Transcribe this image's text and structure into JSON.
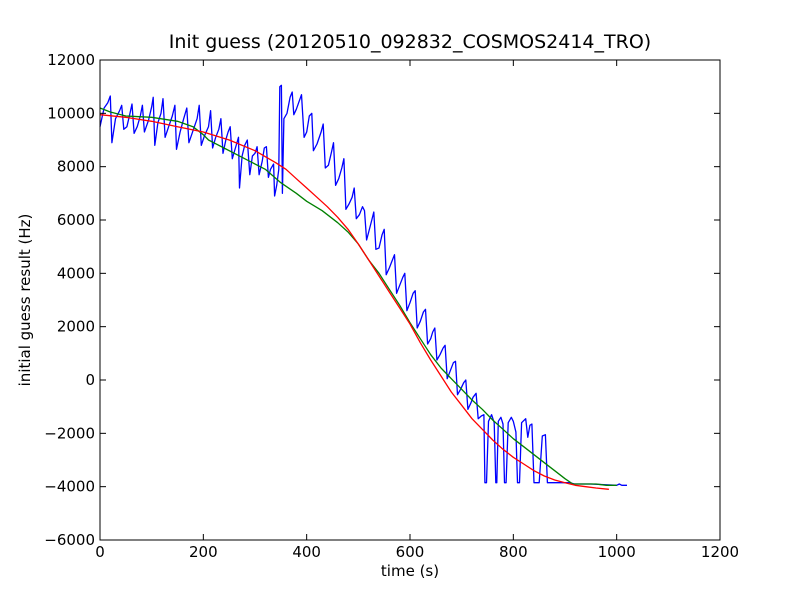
{
  "chart_data": {
    "type": "line",
    "title": "Init guess (20120510_092832_COSMOS2414_TRO)",
    "xlabel": "time (s)",
    "ylabel": "initial guess result (Hz)",
    "xlim": [
      0,
      1200
    ],
    "ylim": [
      -6000,
      12000
    ],
    "x_ticks": [
      0,
      200,
      400,
      600,
      800,
      1000,
      1200
    ],
    "y_ticks": [
      -6000,
      -4000,
      -2000,
      0,
      2000,
      4000,
      6000,
      8000,
      10000,
      12000
    ],
    "x_tick_labels": [
      "0",
      "200",
      "400",
      "600",
      "800",
      "1000",
      "1200"
    ],
    "y_tick_labels": [
      "−6000",
      "−4000",
      "−2000",
      "0",
      "2000",
      "4000",
      "6000",
      "8000",
      "10000",
      "12000"
    ],
    "grid": false,
    "legend": "none",
    "series": [
      {
        "color": "#0000ff",
        "points": [
          [
            0,
            9500
          ],
          [
            8,
            10200
          ],
          [
            15,
            10400
          ],
          [
            20,
            10650
          ],
          [
            23,
            8900
          ],
          [
            30,
            9800
          ],
          [
            38,
            10100
          ],
          [
            42,
            10300
          ],
          [
            46,
            9400
          ],
          [
            52,
            9500
          ],
          [
            58,
            10000
          ],
          [
            62,
            10350
          ],
          [
            66,
            9250
          ],
          [
            72,
            9500
          ],
          [
            78,
            9900
          ],
          [
            82,
            10300
          ],
          [
            86,
            9300
          ],
          [
            94,
            9750
          ],
          [
            100,
            10250
          ],
          [
            103,
            10600
          ],
          [
            106,
            8800
          ],
          [
            112,
            9650
          ],
          [
            118,
            10000
          ],
          [
            122,
            10550
          ],
          [
            126,
            9100
          ],
          [
            132,
            9450
          ],
          [
            140,
            9900
          ],
          [
            145,
            10300
          ],
          [
            148,
            8650
          ],
          [
            155,
            9300
          ],
          [
            162,
            9800
          ],
          [
            168,
            10200
          ],
          [
            172,
            8900
          ],
          [
            180,
            9350
          ],
          [
            188,
            9800
          ],
          [
            192,
            10300
          ],
          [
            196,
            8800
          ],
          [
            202,
            9150
          ],
          [
            210,
            9500
          ],
          [
            214,
            10100
          ],
          [
            218,
            8700
          ],
          [
            224,
            9100
          ],
          [
            230,
            9400
          ],
          [
            234,
            9800
          ],
          [
            238,
            8500
          ],
          [
            244,
            9050
          ],
          [
            248,
            9300
          ],
          [
            252,
            9500
          ],
          [
            256,
            8300
          ],
          [
            262,
            8700
          ],
          [
            268,
            9100
          ],
          [
            270,
            7200
          ],
          [
            275,
            8400
          ],
          [
            280,
            8800
          ],
          [
            285,
            9000
          ],
          [
            290,
            7700
          ],
          [
            295,
            8400
          ],
          [
            300,
            8500
          ],
          [
            304,
            8750
          ],
          [
            308,
            7700
          ],
          [
            314,
            8200
          ],
          [
            318,
            8700
          ],
          [
            322,
            8750
          ],
          [
            326,
            7600
          ],
          [
            330,
            7900
          ],
          [
            336,
            8100
          ],
          [
            338,
            6900
          ],
          [
            342,
            7300
          ],
          [
            346,
            7900
          ],
          [
            348,
            11000
          ],
          [
            351,
            11050
          ],
          [
            353,
            7000
          ],
          [
            356,
            9800
          ],
          [
            362,
            10000
          ],
          [
            368,
            10600
          ],
          [
            372,
            10800
          ],
          [
            375,
            9950
          ],
          [
            380,
            10150
          ],
          [
            390,
            10700
          ],
          [
            395,
            9100
          ],
          [
            400,
            9300
          ],
          [
            405,
            9900
          ],
          [
            410,
            10000
          ],
          [
            413,
            8600
          ],
          [
            420,
            8850
          ],
          [
            428,
            9300
          ],
          [
            432,
            9600
          ],
          [
            436,
            7950
          ],
          [
            442,
            8050
          ],
          [
            448,
            8550
          ],
          [
            452,
            8900
          ],
          [
            456,
            7300
          ],
          [
            462,
            7550
          ],
          [
            468,
            7950
          ],
          [
            472,
            8300
          ],
          [
            476,
            6400
          ],
          [
            482,
            6600
          ],
          [
            488,
            6850
          ],
          [
            492,
            7200
          ],
          [
            496,
            6050
          ],
          [
            502,
            6200
          ],
          [
            508,
            6500
          ],
          [
            512,
            6350
          ],
          [
            516,
            5250
          ],
          [
            520,
            5550
          ],
          [
            526,
            6000
          ],
          [
            530,
            6300
          ],
          [
            534,
            4900
          ],
          [
            540,
            4950
          ],
          [
            546,
            5450
          ],
          [
            550,
            5650
          ],
          [
            554,
            3950
          ],
          [
            560,
            4200
          ],
          [
            566,
            4500
          ],
          [
            570,
            4700
          ],
          [
            574,
            3250
          ],
          [
            580,
            3550
          ],
          [
            586,
            3850
          ],
          [
            590,
            4000
          ],
          [
            594,
            2600
          ],
          [
            600,
            2900
          ],
          [
            606,
            3250
          ],
          [
            610,
            3350
          ],
          [
            614,
            1950
          ],
          [
            620,
            2200
          ],
          [
            626,
            2550
          ],
          [
            630,
            2650
          ],
          [
            634,
            1350
          ],
          [
            640,
            1550
          ],
          [
            644,
            1800
          ],
          [
            648,
            1950
          ],
          [
            652,
            750
          ],
          [
            658,
            950
          ],
          [
            664,
            1200
          ],
          [
            668,
            1300
          ],
          [
            672,
            50
          ],
          [
            678,
            350
          ],
          [
            684,
            650
          ],
          [
            688,
            700
          ],
          [
            692,
            -550
          ],
          [
            698,
            -350
          ],
          [
            704,
            -100
          ],
          [
            708,
            0
          ],
          [
            712,
            -1100
          ],
          [
            718,
            -850
          ],
          [
            722,
            -650
          ],
          [
            728,
            -500
          ],
          [
            732,
            -1450
          ],
          [
            738,
            -1350
          ],
          [
            743,
            -1300
          ],
          [
            745,
            -3850
          ],
          [
            748,
            -3850
          ],
          [
            752,
            -1550
          ],
          [
            758,
            -1300
          ],
          [
            763,
            -1600
          ],
          [
            766,
            -3850
          ],
          [
            768,
            -3850
          ],
          [
            771,
            -1550
          ],
          [
            776,
            -1400
          ],
          [
            780,
            -1650
          ],
          [
            783,
            -3850
          ],
          [
            786,
            -3850
          ],
          [
            790,
            -1600
          ],
          [
            796,
            -1400
          ],
          [
            800,
            -1550
          ],
          [
            805,
            -1950
          ],
          [
            808,
            -3850
          ],
          [
            812,
            -3850
          ],
          [
            816,
            -1600
          ],
          [
            824,
            -1450
          ],
          [
            828,
            -2150
          ],
          [
            832,
            -1700
          ],
          [
            836,
            -1650
          ],
          [
            840,
            -3850
          ],
          [
            850,
            -3850
          ],
          [
            856,
            -2100
          ],
          [
            862,
            -2050
          ],
          [
            866,
            -3850
          ],
          [
            870,
            -3850
          ],
          [
            900,
            -3850
          ],
          [
            910,
            -3850
          ],
          [
            918,
            -3900
          ],
          [
            950,
            -3900
          ],
          [
            1000,
            -3950
          ],
          [
            1005,
            -3900
          ],
          [
            1010,
            -3950
          ],
          [
            1020,
            -3950
          ]
        ]
      },
      {
        "color": "#008000",
        "points": [
          [
            0,
            10200
          ],
          [
            20,
            10050
          ],
          [
            50,
            9900
          ],
          [
            100,
            9850
          ],
          [
            150,
            9700
          ],
          [
            180,
            9500
          ],
          [
            200,
            9200
          ],
          [
            210,
            9000
          ],
          [
            220,
            8900
          ],
          [
            240,
            8700
          ],
          [
            260,
            8500
          ],
          [
            290,
            8200
          ],
          [
            320,
            7900
          ],
          [
            350,
            7400
          ],
          [
            380,
            7000
          ],
          [
            400,
            6700
          ],
          [
            430,
            6350
          ],
          [
            460,
            5900
          ],
          [
            480,
            5550
          ],
          [
            500,
            5100
          ],
          [
            520,
            4500
          ],
          [
            540,
            4000
          ],
          [
            560,
            3400
          ],
          [
            580,
            2800
          ],
          [
            600,
            2150
          ],
          [
            620,
            1550
          ],
          [
            640,
            950
          ],
          [
            660,
            450
          ],
          [
            680,
            50
          ],
          [
            700,
            -350
          ],
          [
            720,
            -750
          ],
          [
            740,
            -1100
          ],
          [
            760,
            -1500
          ],
          [
            780,
            -1850
          ],
          [
            800,
            -2200
          ],
          [
            820,
            -2500
          ],
          [
            840,
            -2800
          ],
          [
            860,
            -3100
          ],
          [
            880,
            -3400
          ],
          [
            900,
            -3700
          ],
          [
            915,
            -3900
          ],
          [
            940,
            -3900
          ],
          [
            960,
            -3900
          ],
          [
            980,
            -3950
          ],
          [
            1000,
            -3950
          ]
        ]
      },
      {
        "color": "#ff0000",
        "points": [
          [
            0,
            9950
          ],
          [
            50,
            9850
          ],
          [
            100,
            9700
          ],
          [
            150,
            9500
          ],
          [
            200,
            9300
          ],
          [
            250,
            9000
          ],
          [
            300,
            8600
          ],
          [
            340,
            8150
          ],
          [
            360,
            7900
          ],
          [
            380,
            7550
          ],
          [
            400,
            7200
          ],
          [
            420,
            6850
          ],
          [
            440,
            6500
          ],
          [
            460,
            6100
          ],
          [
            480,
            5650
          ],
          [
            500,
            5100
          ],
          [
            520,
            4500
          ],
          [
            540,
            3900
          ],
          [
            560,
            3300
          ],
          [
            580,
            2700
          ],
          [
            600,
            2100
          ],
          [
            620,
            1400
          ],
          [
            640,
            750
          ],
          [
            660,
            150
          ],
          [
            680,
            -450
          ],
          [
            700,
            -950
          ],
          [
            720,
            -1450
          ],
          [
            740,
            -1850
          ],
          [
            760,
            -2250
          ],
          [
            780,
            -2600
          ],
          [
            800,
            -2900
          ],
          [
            820,
            -3150
          ],
          [
            840,
            -3400
          ],
          [
            860,
            -3600
          ],
          [
            880,
            -3750
          ],
          [
            900,
            -3850
          ],
          [
            920,
            -3950
          ],
          [
            940,
            -4000
          ],
          [
            960,
            -4050
          ],
          [
            985,
            -4100
          ]
        ]
      }
    ]
  }
}
